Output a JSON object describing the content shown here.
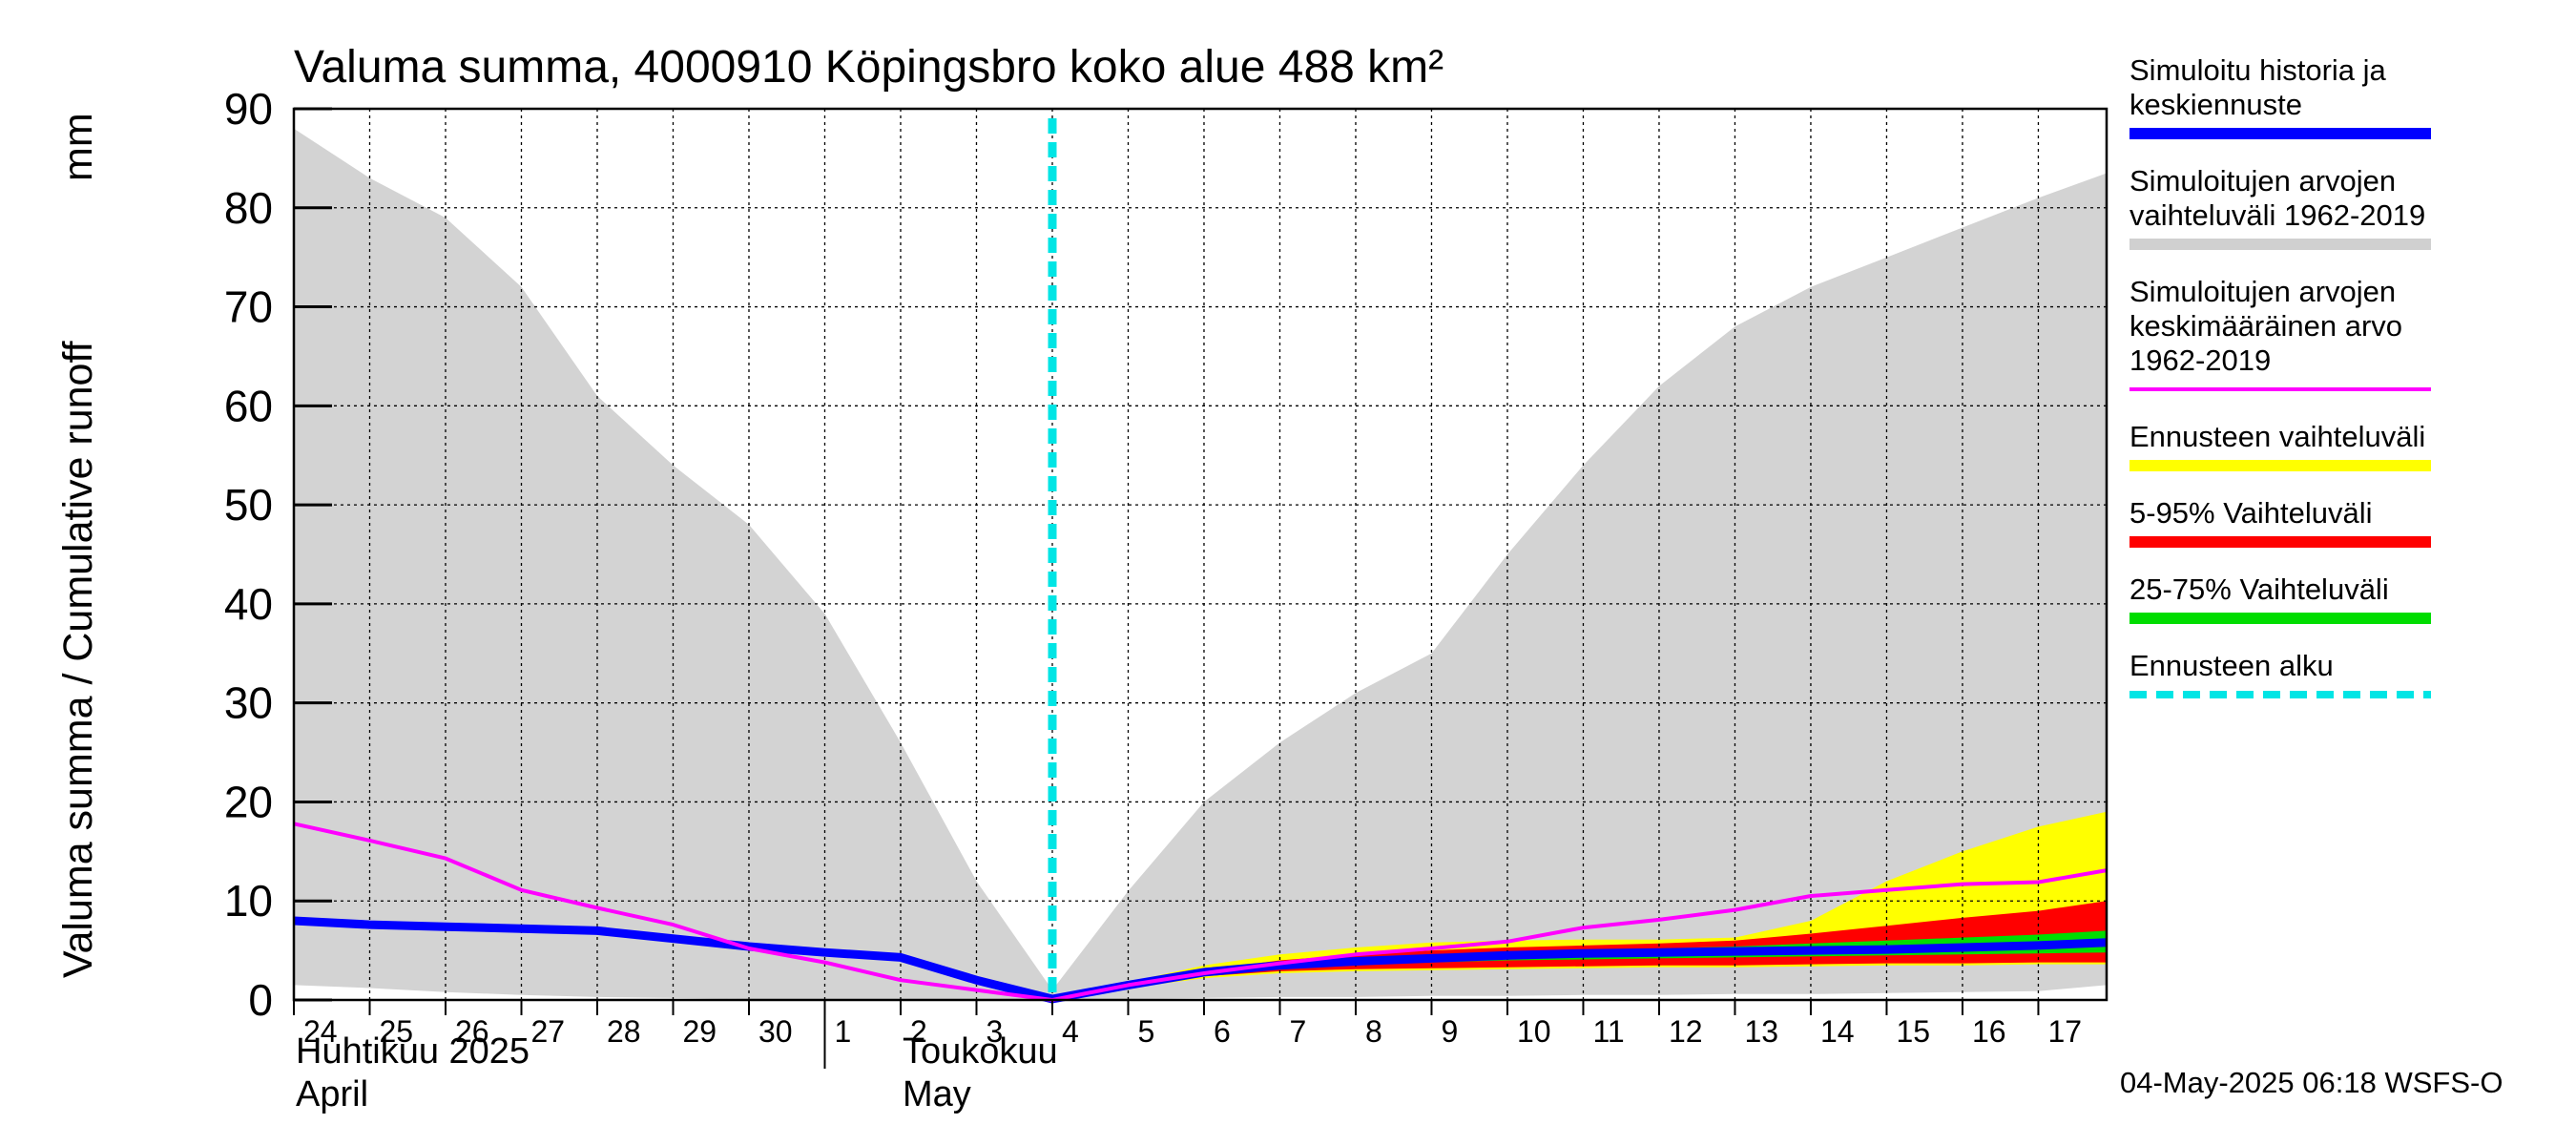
{
  "chart_data": {
    "type": "area",
    "title": "Valuma summa, 4000910 Köpingsbro koko alue 488 km²",
    "ylabel": "Valuma summa / Cumulative runoff",
    "yunit": "mm",
    "ylim": [
      0,
      90
    ],
    "yticks": [
      0,
      10,
      20,
      30,
      40,
      50,
      60,
      70,
      80,
      90
    ],
    "x_day_range": [
      0,
      19
    ],
    "day_ticks": [
      {
        "x": 0,
        "label": "24"
      },
      {
        "x": 1,
        "label": "25"
      },
      {
        "x": 2,
        "label": "26"
      },
      {
        "x": 3,
        "label": "27"
      },
      {
        "x": 4,
        "label": "28"
      },
      {
        "x": 5,
        "label": "29"
      },
      {
        "x": 6,
        "label": "30"
      },
      {
        "x": 7,
        "label": "1"
      },
      {
        "x": 8,
        "label": "2"
      },
      {
        "x": 9,
        "label": "3"
      },
      {
        "x": 10,
        "label": "4"
      },
      {
        "x": 11,
        "label": "5"
      },
      {
        "x": 12,
        "label": "6"
      },
      {
        "x": 13,
        "label": "7"
      },
      {
        "x": 14,
        "label": "8"
      },
      {
        "x": 15,
        "label": "9"
      },
      {
        "x": 16,
        "label": "10"
      },
      {
        "x": 17,
        "label": "11"
      },
      {
        "x": 18,
        "label": "12"
      },
      {
        "x": 19,
        "label": "13"
      },
      {
        "x": 20,
        "label": "14"
      },
      {
        "x": 21,
        "label": "15"
      },
      {
        "x": 22,
        "label": "16"
      },
      {
        "x": 23,
        "label": "17"
      }
    ],
    "x_max": 23.9,
    "month_labels": [
      {
        "x": 0,
        "lines": [
          "Huhtikuu  2025",
          "April"
        ]
      },
      {
        "x": 8,
        "lines": [
          "Toukokuu",
          "May"
        ]
      }
    ],
    "month_separator_x": 7,
    "forecast_start_x": 10,
    "gray_band": {
      "x": [
        0,
        1,
        2,
        3,
        4,
        5,
        6,
        7,
        8,
        9,
        10,
        11,
        12,
        13,
        14,
        15,
        16,
        17,
        18,
        19,
        20,
        21,
        22,
        23,
        23.9
      ],
      "upper": [
        88,
        83,
        79,
        72,
        61,
        54,
        48,
        39,
        26,
        12,
        1,
        11,
        20,
        26,
        31,
        35,
        45,
        54,
        62,
        68,
        72,
        75,
        78,
        81,
        83.5
      ],
      "lower": [
        1.5,
        1.2,
        0.8,
        0.5,
        0.3,
        0.2,
        0.1,
        0.1,
        0.1,
        0.1,
        0,
        0.1,
        0.2,
        0.3,
        0.3,
        0.4,
        0.4,
        0.5,
        0.5,
        0.6,
        0.6,
        0.7,
        0.8,
        0.9,
        1.5
      ]
    },
    "series": [
      {
        "name": "Simuloitu historia ja keskiennuste",
        "color": "#0000ff",
        "x": [
          0,
          1,
          2,
          3,
          4,
          5,
          6,
          7,
          8,
          9,
          10,
          11,
          12,
          13,
          14,
          15,
          16,
          17,
          18,
          19,
          20,
          21,
          22,
          23,
          23.9
        ],
        "y": [
          8,
          7.6,
          7.4,
          7.2,
          7.0,
          6.2,
          5.4,
          4.8,
          4.3,
          2.0,
          0.1,
          1.5,
          2.8,
          3.5,
          3.9,
          4.2,
          4.5,
          4.7,
          4.8,
          4.9,
          5.0,
          5.1,
          5.3,
          5.5,
          5.8
        ]
      },
      {
        "name": "Simuloitujen arvojen keskimääräinen arvo 1962-2019",
        "color": "#ff00ff",
        "x": [
          0,
          1,
          2,
          3,
          4,
          5,
          6,
          7,
          8,
          9,
          10,
          11,
          12,
          13,
          14,
          15,
          16,
          17,
          18,
          19,
          20,
          21,
          22,
          23,
          23.9
        ],
        "y": [
          17.8,
          16.1,
          14.3,
          11.1,
          9.3,
          7.6,
          5.2,
          3.8,
          2.0,
          1.0,
          0,
          1.5,
          2.7,
          3.7,
          4.6,
          5.2,
          5.9,
          7.3,
          8.1,
          9.1,
          10.5,
          11.1,
          11.7,
          11.9,
          13.1
        ]
      }
    ],
    "forecast_bands": [
      {
        "name": "Ennusteen vaihteluväli",
        "color": "#ffff00",
        "x": [
          10,
          11,
          12,
          13,
          14,
          15,
          16,
          17,
          18,
          19,
          20,
          21,
          22,
          23,
          23.9
        ],
        "upper": [
          0.2,
          1.8,
          3.5,
          4.6,
          5.3,
          5.8,
          6.0,
          6.1,
          6.1,
          6.3,
          8,
          12,
          15,
          17.5,
          19
        ],
        "lower": [
          0,
          1.2,
          2.2,
          2.7,
          2.9,
          3.0,
          3.1,
          3.2,
          3.3,
          3.3,
          3.4,
          3.5,
          3.5,
          3.6,
          3.6
        ]
      },
      {
        "name": "5-95% Vaihteluväli",
        "color": "#ff0000",
        "x": [
          10,
          11,
          12,
          13,
          14,
          15,
          16,
          17,
          18,
          19,
          20,
          21,
          22,
          23,
          23.9
        ],
        "upper": [
          0.15,
          1.6,
          3.0,
          4.0,
          4.6,
          5.0,
          5.3,
          5.5,
          5.7,
          6.0,
          6.7,
          7.5,
          8.3,
          9.0,
          10.0
        ],
        "lower": [
          0,
          1.3,
          2.4,
          2.9,
          3.1,
          3.2,
          3.3,
          3.4,
          3.5,
          3.5,
          3.6,
          3.7,
          3.7,
          3.8,
          3.8
        ]
      },
      {
        "name": "25-75% Vaihteluväli",
        "color": "#00dd00",
        "x": [
          10,
          11,
          12,
          13,
          14,
          15,
          16,
          17,
          18,
          19,
          20,
          21,
          22,
          23,
          23.9
        ],
        "upper": [
          0.12,
          1.55,
          2.9,
          3.7,
          4.2,
          4.5,
          4.8,
          5.0,
          5.2,
          5.4,
          5.7,
          6.0,
          6.3,
          6.6,
          7.0
        ],
        "lower": [
          0.05,
          1.4,
          2.6,
          3.2,
          3.5,
          3.8,
          4.0,
          4.1,
          4.2,
          4.3,
          4.4,
          4.5,
          4.6,
          4.7,
          4.8
        ]
      }
    ],
    "legend_position": "right",
    "legend": [
      {
        "lines": [
          "Simuloitu historia ja",
          "keskiennuste"
        ],
        "color": "#0000ff",
        "style": "line"
      },
      {
        "lines": [
          "Simuloitujen arvojen",
          "vaihteluväli 1962-2019"
        ],
        "color": "#d0d0d0",
        "style": "line"
      },
      {
        "lines": [
          "Simuloitujen arvojen",
          "keskimääräinen arvo",
          "   1962-2019"
        ],
        "color": "#ff00ff",
        "style": "thin"
      },
      {
        "lines": [
          "Ennusteen vaihteluväli"
        ],
        "color": "#ffff00",
        "style": "line"
      },
      {
        "lines": [
          "5-95% Vaihteluväli"
        ],
        "color": "#ff0000",
        "style": "line"
      },
      {
        "lines": [
          "25-75% Vaihteluväli"
        ],
        "color": "#00dd00",
        "style": "line"
      },
      {
        "lines": [
          "Ennusteen alku"
        ],
        "color": "#00e5e5",
        "style": "dashed"
      }
    ],
    "timestamp": "04-May-2025 06:18 WSFS-O",
    "grid": true
  }
}
